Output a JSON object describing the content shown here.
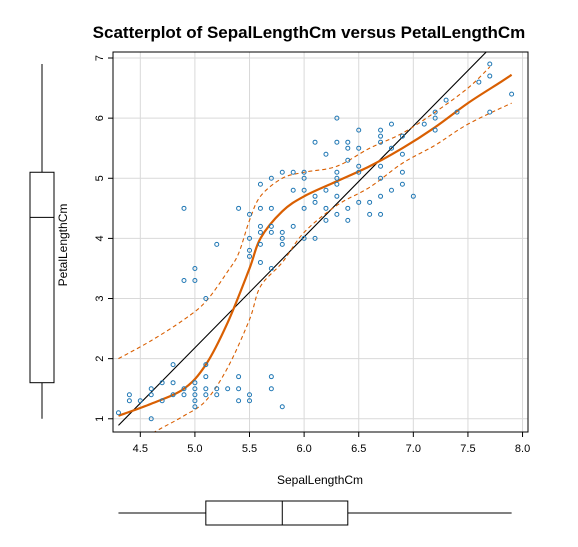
{
  "chart_data": {
    "type": "scatter",
    "title": "Scatterplot of SepalLengthCm versus PetalLengthCm",
    "xlabel": "SepalLengthCm",
    "ylabel": "PetalLengthCm",
    "xlim": [
      4.25,
      8.05
    ],
    "ylim": [
      0.78,
      7.1
    ],
    "x_ticks": [
      4.5,
      5.0,
      5.5,
      6.0,
      6.5,
      7.0,
      7.5,
      8.0
    ],
    "x_tick_labels": [
      "4.5",
      "5.0",
      "5.5",
      "6.0",
      "6.5",
      "7.0",
      "7.5",
      "8.0"
    ],
    "y_ticks": [
      1,
      2,
      3,
      4,
      5,
      6,
      7
    ],
    "y_tick_labels": [
      "1",
      "2",
      "3",
      "4",
      "5",
      "6",
      "7"
    ],
    "grid": true,
    "colors": {
      "points": "#1f77b4",
      "smoother": "#d95f02",
      "regression": "#000000",
      "grid": "#d9d9d9"
    },
    "points": [
      [
        4.3,
        1.1
      ],
      [
        4.4,
        1.3
      ],
      [
        4.4,
        1.4
      ],
      [
        4.5,
        1.3
      ],
      [
        4.6,
        1.0
      ],
      [
        4.6,
        1.4
      ],
      [
        4.6,
        1.5
      ],
      [
        4.7,
        1.3
      ],
      [
        4.7,
        1.6
      ],
      [
        4.8,
        1.4
      ],
      [
        4.8,
        1.6
      ],
      [
        4.8,
        1.9
      ],
      [
        4.9,
        1.4
      ],
      [
        4.9,
        1.5
      ],
      [
        4.9,
        3.3
      ],
      [
        4.9,
        4.5
      ],
      [
        5.0,
        1.2
      ],
      [
        5.0,
        1.3
      ],
      [
        5.0,
        1.4
      ],
      [
        5.0,
        1.5
      ],
      [
        5.0,
        1.6
      ],
      [
        5.0,
        3.3
      ],
      [
        5.0,
        3.5
      ],
      [
        5.1,
        1.4
      ],
      [
        5.1,
        1.5
      ],
      [
        5.1,
        1.7
      ],
      [
        5.1,
        1.9
      ],
      [
        5.1,
        3.0
      ],
      [
        5.2,
        1.4
      ],
      [
        5.2,
        1.5
      ],
      [
        5.2,
        3.9
      ],
      [
        5.3,
        1.5
      ],
      [
        5.4,
        1.3
      ],
      [
        5.4,
        1.5
      ],
      [
        5.4,
        1.7
      ],
      [
        5.4,
        4.5
      ],
      [
        5.5,
        1.3
      ],
      [
        5.5,
        1.4
      ],
      [
        5.5,
        3.7
      ],
      [
        5.5,
        3.8
      ],
      [
        5.5,
        4.0
      ],
      [
        5.5,
        4.4
      ],
      [
        5.6,
        3.6
      ],
      [
        5.6,
        3.9
      ],
      [
        5.6,
        4.1
      ],
      [
        5.6,
        4.2
      ],
      [
        5.6,
        4.5
      ],
      [
        5.6,
        4.9
      ],
      [
        5.7,
        1.5
      ],
      [
        5.7,
        1.7
      ],
      [
        5.7,
        3.5
      ],
      [
        5.7,
        4.1
      ],
      [
        5.7,
        4.2
      ],
      [
        5.7,
        4.5
      ],
      [
        5.7,
        5.0
      ],
      [
        5.8,
        1.2
      ],
      [
        5.8,
        3.9
      ],
      [
        5.8,
        4.0
      ],
      [
        5.8,
        4.1
      ],
      [
        5.8,
        5.1
      ],
      [
        5.9,
        4.2
      ],
      [
        5.9,
        4.8
      ],
      [
        5.9,
        5.1
      ],
      [
        6.0,
        4.0
      ],
      [
        6.0,
        4.5
      ],
      [
        6.0,
        4.8
      ],
      [
        6.0,
        5.0
      ],
      [
        6.0,
        5.1
      ],
      [
        6.1,
        4.0
      ],
      [
        6.1,
        4.6
      ],
      [
        6.1,
        4.7
      ],
      [
        6.1,
        5.6
      ],
      [
        6.2,
        4.3
      ],
      [
        6.2,
        4.5
      ],
      [
        6.2,
        4.8
      ],
      [
        6.2,
        5.4
      ],
      [
        6.3,
        4.4
      ],
      [
        6.3,
        4.7
      ],
      [
        6.3,
        4.9
      ],
      [
        6.3,
        5.0
      ],
      [
        6.3,
        5.1
      ],
      [
        6.3,
        5.6
      ],
      [
        6.3,
        6.0
      ],
      [
        6.4,
        4.3
      ],
      [
        6.4,
        4.5
      ],
      [
        6.4,
        5.3
      ],
      [
        6.4,
        5.5
      ],
      [
        6.4,
        5.6
      ],
      [
        6.5,
        4.6
      ],
      [
        6.5,
        5.1
      ],
      [
        6.5,
        5.2
      ],
      [
        6.5,
        5.5
      ],
      [
        6.5,
        5.8
      ],
      [
        6.6,
        4.4
      ],
      [
        6.6,
        4.6
      ],
      [
        6.7,
        4.4
      ],
      [
        6.7,
        4.7
      ],
      [
        6.7,
        5.0
      ],
      [
        6.7,
        5.2
      ],
      [
        6.7,
        5.6
      ],
      [
        6.7,
        5.7
      ],
      [
        6.7,
        5.8
      ],
      [
        6.8,
        4.8
      ],
      [
        6.8,
        5.5
      ],
      [
        6.8,
        5.9
      ],
      [
        6.9,
        4.9
      ],
      [
        6.9,
        5.1
      ],
      [
        6.9,
        5.4
      ],
      [
        6.9,
        5.7
      ],
      [
        7.0,
        4.7
      ],
      [
        7.1,
        5.9
      ],
      [
        7.2,
        5.8
      ],
      [
        7.2,
        6.0
      ],
      [
        7.2,
        6.1
      ],
      [
        7.3,
        6.3
      ],
      [
        7.4,
        6.1
      ],
      [
        7.6,
        6.6
      ],
      [
        7.7,
        6.1
      ],
      [
        7.7,
        6.7
      ],
      [
        7.7,
        6.9
      ],
      [
        7.9,
        6.4
      ]
    ],
    "regression_line": [
      [
        4.3,
        0.89
      ],
      [
        7.7,
        7.16
      ]
    ],
    "smoother": [
      [
        4.3,
        1.05
      ],
      [
        4.6,
        1.25
      ],
      [
        4.9,
        1.5
      ],
      [
        5.1,
        1.9
      ],
      [
        5.3,
        2.6
      ],
      [
        5.5,
        3.5
      ],
      [
        5.6,
        4.0
      ],
      [
        5.8,
        4.45
      ],
      [
        6.0,
        4.7
      ],
      [
        6.3,
        4.95
      ],
      [
        6.6,
        5.2
      ],
      [
        6.9,
        5.5
      ],
      [
        7.2,
        5.85
      ],
      [
        7.5,
        6.25
      ],
      [
        7.8,
        6.6
      ],
      [
        7.9,
        6.72
      ]
    ],
    "smoother_upper": [
      [
        4.3,
        2.0
      ],
      [
        4.6,
        2.3
      ],
      [
        4.9,
        2.65
      ],
      [
        5.1,
        2.95
      ],
      [
        5.3,
        3.45
      ],
      [
        5.4,
        3.75
      ],
      [
        5.5,
        4.3
      ],
      [
        5.6,
        4.7
      ],
      [
        5.8,
        5.0
      ],
      [
        6.0,
        5.1
      ],
      [
        6.3,
        5.2
      ],
      [
        6.6,
        5.5
      ],
      [
        6.9,
        5.75
      ],
      [
        7.2,
        6.1
      ],
      [
        7.5,
        6.5
      ],
      [
        7.7,
        6.85
      ]
    ],
    "smoother_lower": [
      [
        4.5,
        0.65
      ],
      [
        4.7,
        0.85
      ],
      [
        4.9,
        1.05
      ],
      [
        5.1,
        1.3
      ],
      [
        5.3,
        1.85
      ],
      [
        5.5,
        2.65
      ],
      [
        5.6,
        3.2
      ],
      [
        5.8,
        3.6
      ],
      [
        6.0,
        4.1
      ],
      [
        6.3,
        4.55
      ],
      [
        6.6,
        4.85
      ],
      [
        6.9,
        5.25
      ],
      [
        7.2,
        5.55
      ],
      [
        7.5,
        5.9
      ],
      [
        7.9,
        6.25
      ]
    ],
    "x_boxplot": {
      "min": 4.3,
      "q1": 5.1,
      "median": 5.8,
      "q3": 6.4,
      "max": 7.9
    },
    "y_boxplot": {
      "min": 1.0,
      "q1": 1.6,
      "median": 4.35,
      "q3": 5.1,
      "max": 6.9
    }
  }
}
